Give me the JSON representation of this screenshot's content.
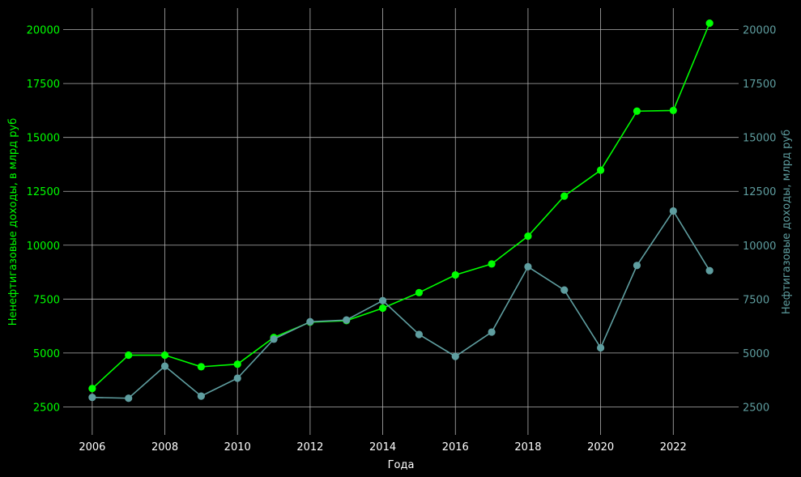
{
  "chart_data": {
    "type": "line",
    "xlabel": "Года",
    "ylabel_left": "Ненефтигазовые доходы, в млрд руб",
    "ylabel_right": "Нефтигазовые доходы, млрд руб",
    "x": [
      2006,
      2007,
      2008,
      2009,
      2010,
      2011,
      2012,
      2013,
      2014,
      2015,
      2016,
      2017,
      2018,
      2019,
      2020,
      2021,
      2022,
      2023
    ],
    "x_ticks": [
      "2006",
      "2008",
      "2010",
      "2012",
      "2014",
      "2016",
      "2018",
      "2020",
      "2022"
    ],
    "y_ticks": [
      "2500",
      "5000",
      "7500",
      "10000",
      "12500",
      "15000",
      "17500",
      "20000"
    ],
    "ylim": [
      1200,
      21000
    ],
    "xlim": [
      2005.2,
      2023.8
    ],
    "grid": true,
    "series": [
      {
        "axis": "left",
        "color": "#00ff00",
        "values": [
          3350,
          4900,
          4900,
          4360,
          4480,
          5720,
          6430,
          6500,
          7080,
          7800,
          8620,
          9130,
          10420,
          12280,
          13480,
          16220,
          16250,
          20300
        ]
      },
      {
        "axis": "right",
        "color": "#5f9ea0",
        "values": [
          2940,
          2900,
          4390,
          3000,
          3830,
          5640,
          6450,
          6530,
          7430,
          5860,
          4840,
          5970,
          9000,
          7920,
          5240,
          9060,
          11590,
          8820
        ]
      }
    ],
    "colors": {
      "left_axis": "#00ff00",
      "right_axis": "#5f9ea0",
      "text": "#ffffff",
      "grid": "#b0b0b0"
    }
  }
}
